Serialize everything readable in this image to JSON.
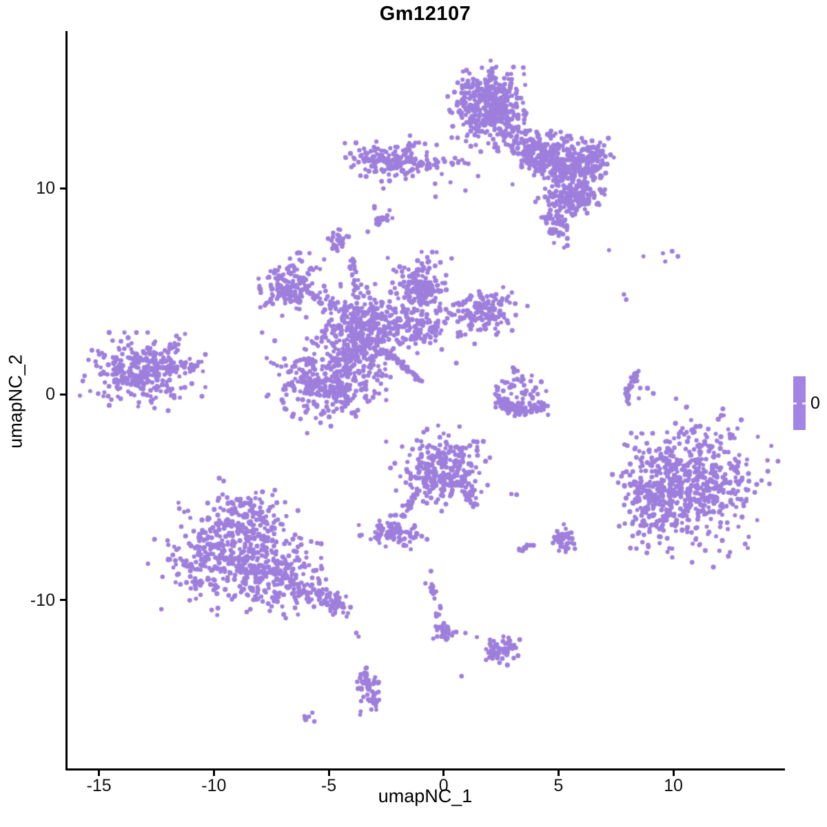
{
  "chart_data": {
    "type": "scatter",
    "title": "Gm12107",
    "xlabel": "umapNC_1",
    "ylabel": "umapNC_2",
    "xlim": [
      -16.4,
      14.8
    ],
    "ylim": [
      -18.25,
      17.65
    ],
    "x_ticks": [
      "-15",
      "-10",
      "-5",
      "0",
      "5",
      "10"
    ],
    "x_tick_values": [
      -15,
      -10,
      -5,
      0,
      5,
      10
    ],
    "y_ticks": [
      "-10",
      "0",
      "10"
    ],
    "y_tick_values": [
      -10,
      0,
      10
    ],
    "grid": false,
    "legend": {
      "label": "0",
      "position": "right",
      "color": "#A184E3"
    },
    "point_color": "#9E7FDC",
    "point_radius_px": 3.3,
    "clusters_format": "[center_x, center_y, sigma_x, sigma_y, angle_deg, n_points]",
    "clusters": [
      [
        2.0,
        14.0,
        0.75,
        0.85,
        0,
        400
      ],
      [
        3.8,
        12.0,
        0.95,
        0.45,
        -38,
        190
      ],
      [
        5.3,
        11.3,
        0.8,
        0.55,
        -15,
        240
      ],
      [
        6.5,
        11.45,
        0.35,
        0.4,
        0,
        70
      ],
      [
        5.7,
        9.55,
        0.6,
        0.45,
        -10,
        150
      ],
      [
        4.85,
        8.5,
        0.35,
        0.55,
        15,
        60
      ],
      [
        -2.3,
        11.4,
        0.9,
        0.45,
        0,
        170
      ],
      [
        -2.75,
        8.6,
        0.2,
        0.3,
        0,
        22
      ],
      [
        -4.6,
        7.4,
        0.2,
        0.27,
        0,
        28
      ],
      [
        -6.7,
        5.3,
        0.6,
        0.6,
        0,
        150
      ],
      [
        -3.6,
        2.75,
        0.8,
        1.0,
        0,
        370
      ],
      [
        -5.1,
        0.45,
        1.0,
        0.9,
        0,
        340
      ],
      [
        -1.0,
        5.1,
        0.55,
        0.7,
        0,
        170
      ],
      [
        -1.5,
        3.4,
        0.95,
        0.5,
        -15,
        150
      ],
      [
        1.7,
        4.1,
        0.75,
        0.5,
        0,
        140
      ],
      [
        -13.1,
        1.05,
        1.05,
        0.75,
        0,
        290
      ],
      [
        3.25,
        0.3,
        0.6,
        0.5,
        0,
        55
      ],
      [
        10.8,
        -4.3,
        1.3,
        1.5,
        -20,
        620
      ],
      [
        8.45,
        -4.5,
        0.35,
        0.55,
        0,
        40
      ],
      [
        9.3,
        -5.9,
        0.55,
        0.75,
        0,
        50
      ],
      [
        -0.1,
        -3.6,
        0.85,
        0.8,
        0,
        250
      ],
      [
        -2.3,
        -6.7,
        0.55,
        0.33,
        0,
        85
      ],
      [
        -8.5,
        -5.9,
        0.85,
        0.7,
        0,
        130
      ],
      [
        -9.1,
        -8.0,
        1.45,
        1.05,
        0,
        430
      ],
      [
        -7.2,
        -8.9,
        0.8,
        0.8,
        0,
        120
      ],
      [
        2.45,
        -12.4,
        0.42,
        0.3,
        0,
        55
      ],
      [
        -3.25,
        -14.5,
        0.28,
        0.5,
        0,
        55
      ],
      [
        -5.9,
        -15.7,
        0.12,
        0.1,
        0,
        7
      ],
      [
        5.2,
        -7.1,
        0.28,
        0.3,
        0,
        38
      ],
      [
        3.6,
        -7.5,
        0.12,
        0.12,
        0,
        10
      ],
      [
        0.05,
        -11.6,
        0.2,
        0.18,
        0,
        22
      ]
    ],
    "streaks_format": "[x1,y1, ctrl_x,ctrl_y, x2,y2, n_points, jitter]",
    "streaks": [
      [
        -1.3,
        11.1,
        -0.25,
        11.18,
        0.8,
        11.25,
        30,
        0.13
      ],
      [
        -3.95,
        6.55,
        -3.9,
        5.68,
        -3.85,
        4.8,
        22,
        0.1
      ],
      [
        -5.6,
        4.8,
        -4.9,
        4.38,
        -4.2,
        3.95,
        35,
        0.18
      ],
      [
        -2.45,
        2.05,
        -1.73,
        1.35,
        -1.0,
        0.65,
        55,
        0.05
      ],
      [
        -11.9,
        1.25,
        -11.3,
        1.3,
        -10.65,
        1.35,
        30,
        0.22
      ],
      [
        -12.2,
        1.95,
        -11.8,
        2.4,
        -11.35,
        2.85,
        12,
        0.1
      ],
      [
        2.25,
        -0.15,
        3.35,
        -1.25,
        4.55,
        -0.4,
        95,
        0.13
      ],
      [
        8.5,
        1.15,
        7.9,
        0.35,
        8.05,
        -0.5,
        42,
        0.05
      ],
      [
        0.75,
        -3.8,
        1.0,
        -4.58,
        1.25,
        -5.35,
        35,
        0.14
      ],
      [
        -1.05,
        -4.55,
        -1.43,
        -5.28,
        -1.8,
        -6.0,
        22,
        0.07
      ],
      [
        -6.4,
        -9.4,
        -5.35,
        -9.88,
        -4.3,
        -10.35,
        100,
        0.3
      ],
      [
        -0.65,
        -9.05,
        -0.2,
        -10.3,
        0.0,
        -11.75,
        26,
        0.09
      ],
      [
        -3.45,
        -13.2,
        -3.38,
        -13.7,
        -3.3,
        -14.2,
        10,
        0.06
      ]
    ],
    "dots": [
      [
        7.2,
        7.0
      ],
      [
        8.7,
        6.7
      ],
      [
        9.55,
        6.85
      ],
      [
        9.95,
        6.95
      ],
      [
        10.2,
        6.7
      ],
      [
        9.65,
        6.45
      ],
      [
        7.85,
        4.85
      ],
      [
        7.95,
        4.6
      ],
      [
        8.42,
        0.65
      ],
      [
        8.56,
        0.3
      ],
      [
        8.5,
        -0.2
      ],
      [
        -2.7,
        10.35
      ],
      [
        -2.62,
        10.0
      ],
      [
        0.55,
        -11.55
      ],
      [
        0.95,
        -11.6
      ],
      [
        1.45,
        -11.8
      ],
      [
        0.78,
        -13.7
      ],
      [
        -3.8,
        -11.6
      ],
      [
        -3.7,
        -11.78
      ],
      [
        -1.15,
        -6.8
      ],
      [
        -0.95,
        -6.9
      ],
      [
        -0.72,
        -7.05
      ],
      [
        -2.52,
        -7.4
      ],
      [
        2.95,
        -4.85
      ],
      [
        3.18,
        -4.88
      ],
      [
        -2.5,
        -2.3
      ],
      [
        -0.55,
        -8.6
      ],
      [
        -6.3,
        6.9
      ],
      [
        -5.2,
        6.55
      ],
      [
        -0.3,
        6.9
      ],
      [
        0.35,
        6.6
      ],
      [
        -7.9,
        3.0
      ],
      [
        -7.35,
        2.6
      ],
      [
        0.95,
        2.9
      ],
      [
        1.35,
        2.45
      ],
      [
        2.3,
        2.9
      ],
      [
        0.3,
        10.3
      ],
      [
        0.95,
        9.9
      ],
      [
        1.5,
        10.6
      ],
      [
        4.0,
        9.35
      ],
      [
        3.0,
        10.2
      ],
      [
        -0.35,
        9.6
      ],
      [
        -3.3,
        7.9
      ],
      [
        9.1,
        -1.9
      ],
      [
        8.35,
        -2.6
      ],
      [
        10.4,
        -1.65
      ],
      [
        -7.45,
        -4.9
      ],
      [
        -6.9,
        -5.25
      ]
    ]
  }
}
